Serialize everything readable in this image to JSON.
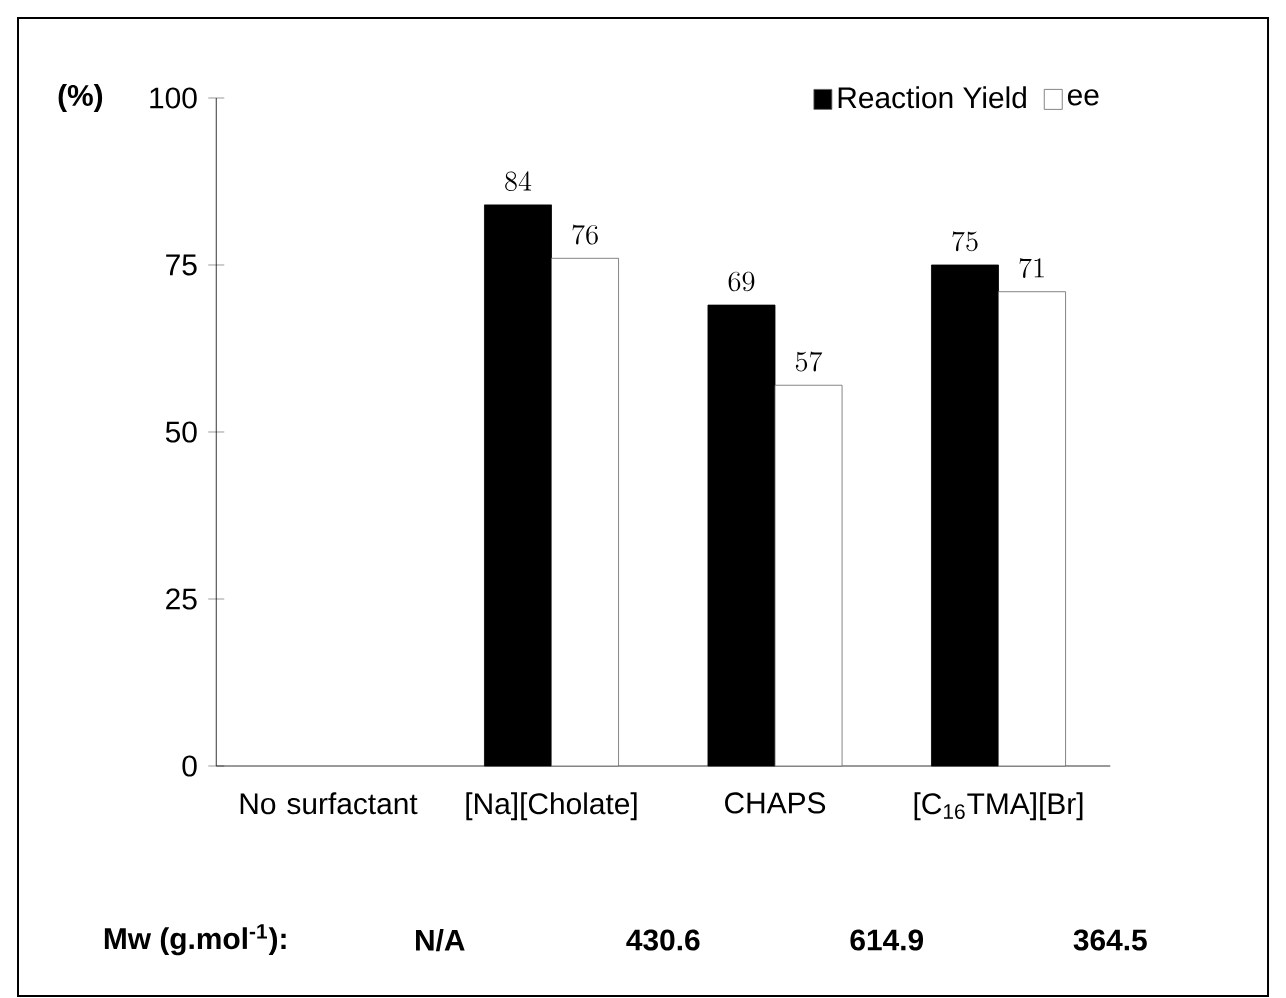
{
  "chart_data": {
    "type": "bar",
    "ylabel": "(%)",
    "categories": [
      "No surfactant",
      "[Na][Cholate]",
      "CHAPS",
      "[C$_{16}$TMA][Br]"
    ],
    "series": [
      {
        "name": "Reaction Yield",
        "color": "#000000",
        "values": [
          null,
          84,
          69,
          75
        ]
      },
      {
        "name": "ee",
        "color": "#ffffff",
        "values": [
          null,
          76,
          57,
          71
        ]
      }
    ],
    "ylim": [
      0,
      100
    ],
    "yticks": [
      0,
      25,
      50,
      75,
      100
    ],
    "data_labels": true,
    "legend": "top right",
    "grid": false,
    "annotations": [
      "Mw (g.mol$^{-1}$):",
      "N/A",
      "430.6",
      "614.9",
      "364.5"
    ]
  }
}
